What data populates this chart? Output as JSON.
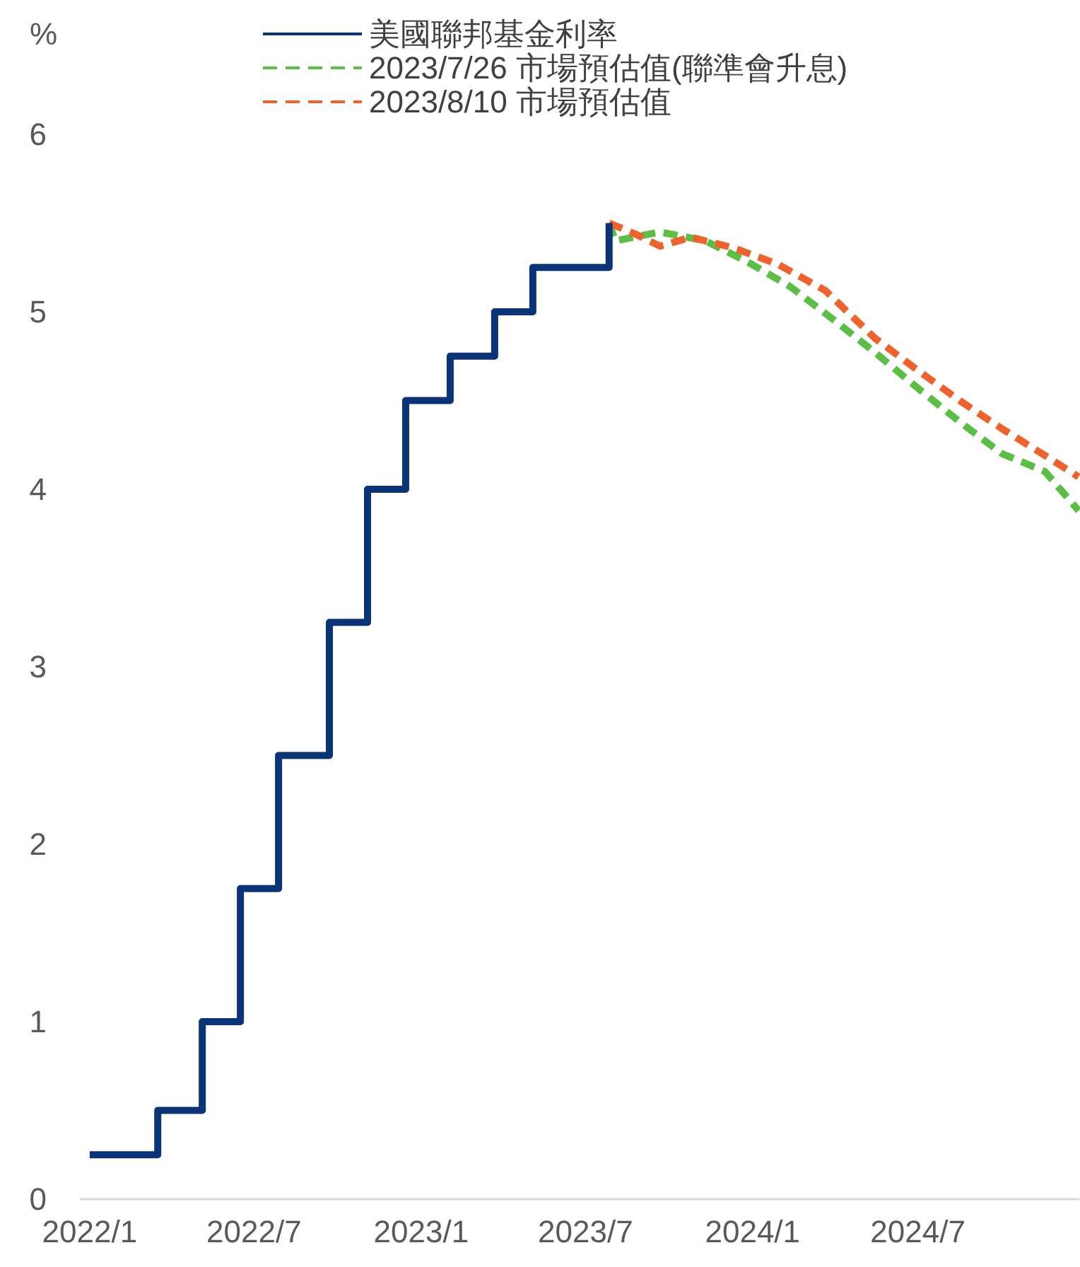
{
  "chart_data": {
    "type": "line",
    "ylabel": "%",
    "xlim": [
      "2021-12-22",
      "2024-12-25"
    ],
    "xticks": [
      {
        "value": "2022-01",
        "label": "2022/1"
      },
      {
        "value": "2022-07",
        "label": "2022/7"
      },
      {
        "value": "2023-01",
        "label": "2023/1"
      },
      {
        "value": "2023-07",
        "label": "2023/7"
      },
      {
        "value": "2024-01",
        "label": "2024/1"
      },
      {
        "value": "2024-07",
        "label": "2024/7"
      }
    ],
    "ylim": [
      0,
      6
    ],
    "yticks": [
      0,
      1,
      2,
      3,
      4,
      5,
      6
    ],
    "grid": false,
    "legend": "top",
    "marker": "none",
    "series": [
      {
        "name": "美國聯邦基金利率",
        "type": "step",
        "color": "#0b3478",
        "line_style": "solid",
        "x": [
          "2022-01-01",
          "2022-03-17",
          "2022-05-05",
          "2022-06-16",
          "2022-07-28",
          "2022-09-22",
          "2022-11-03",
          "2022-12-15",
          "2023-02-02",
          "2023-03-23",
          "2023-05-04",
          "2023-07-27"
        ],
        "values": [
          0.25,
          0.5,
          1.0,
          1.75,
          2.5,
          3.25,
          4.0,
          4.5,
          4.75,
          5.0,
          5.25,
          5.5
        ]
      },
      {
        "name": "2023/7/26 市場預估值(聯準會升息)",
        "color": "#5cbf45",
        "line_style": "dashed",
        "x": [
          "2023-07-27",
          "2023-08-03",
          "2023-09-21",
          "2023-11-10",
          "2023-12-27",
          "2024-02-12",
          "2024-03-29",
          "2024-05-15",
          "2024-07-01",
          "2024-08-16",
          "2024-10-02",
          "2024-11-18",
          "2024-12-25"
        ],
        "values": [
          5.5,
          5.4,
          5.45,
          5.4,
          5.28,
          5.14,
          4.96,
          4.77,
          4.57,
          4.38,
          4.2,
          4.1,
          3.88
        ]
      },
      {
        "name": "2023/8/10 市場預估值",
        "color": "#f0622b",
        "line_style": "dashed",
        "x": [
          "2023-07-27",
          "2023-08-24",
          "2023-09-21",
          "2023-10-25",
          "2023-12-11",
          "2024-01-28",
          "2024-03-21",
          "2024-05-15",
          "2024-07-01",
          "2024-08-16",
          "2024-10-02",
          "2024-11-18",
          "2024-12-25"
        ],
        "values": [
          5.5,
          5.44,
          5.37,
          5.42,
          5.36,
          5.27,
          5.12,
          4.85,
          4.67,
          4.5,
          4.34,
          4.19,
          4.07
        ]
      }
    ]
  }
}
